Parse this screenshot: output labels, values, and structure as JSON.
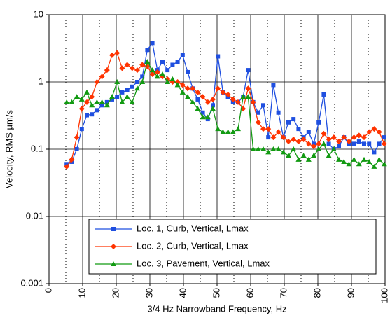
{
  "chart_data": {
    "type": "line",
    "x_label": "3/4 Hz Narrowband Frequency, Hz",
    "y_label": "Velocity, RMS µm/s",
    "x": [
      5.25,
      6.75,
      8.25,
      9.75,
      11.25,
      12.75,
      14.25,
      15.75,
      17.25,
      18.75,
      20.25,
      21.75,
      23.25,
      24.75,
      26.25,
      27.75,
      29.25,
      30.75,
      32.25,
      33.75,
      35.25,
      36.75,
      38.25,
      39.75,
      41.25,
      42.75,
      44.25,
      45.75,
      47.25,
      48.75,
      50.25,
      51.75,
      53.25,
      54.75,
      56.25,
      57.75,
      59.25,
      60.75,
      62.25,
      63.75,
      65.25,
      66.75,
      68.25,
      69.75,
      71.25,
      72.75,
      74.25,
      75.75,
      77.25,
      78.75,
      80.25,
      81.75,
      83.25,
      84.75,
      86.25,
      87.75,
      89.25,
      90.75,
      92.25,
      93.75,
      95.25,
      96.75,
      98.25,
      99.75
    ],
    "series": [
      {
        "name": "Loc. 1, Curb, Vertical, Lmax",
        "color": "#1f4fe0",
        "marker": "square",
        "values": [
          0.06,
          0.065,
          0.1,
          0.2,
          0.32,
          0.33,
          0.38,
          0.45,
          0.5,
          0.55,
          0.6,
          0.7,
          0.75,
          0.85,
          1.0,
          1.2,
          3.0,
          3.8,
          1.5,
          2.0,
          1.5,
          1.8,
          2.0,
          2.5,
          1.4,
          0.8,
          0.55,
          0.35,
          0.28,
          0.45,
          2.4,
          0.7,
          0.6,
          0.5,
          0.5,
          0.6,
          1.5,
          0.5,
          0.35,
          0.45,
          0.15,
          0.9,
          0.35,
          0.15,
          0.25,
          0.28,
          0.2,
          0.15,
          0.18,
          0.12,
          0.25,
          0.65,
          0.12,
          0.1,
          0.11,
          0.15,
          0.12,
          0.12,
          0.13,
          0.12,
          0.12,
          0.09,
          0.12,
          0.15
        ]
      },
      {
        "name": "Loc. 2, Curb, Vertical, Lmax",
        "color": "#ff3300",
        "marker": "diamond",
        "values": [
          0.055,
          0.07,
          0.15,
          0.4,
          0.5,
          0.6,
          1.0,
          1.2,
          1.5,
          2.5,
          2.7,
          1.6,
          1.8,
          1.6,
          1.5,
          1.8,
          1.7,
          1.3,
          1.4,
          1.2,
          1.1,
          1.0,
          1.0,
          0.9,
          0.8,
          0.8,
          0.7,
          0.6,
          0.5,
          0.55,
          0.8,
          0.7,
          0.65,
          0.55,
          0.5,
          0.4,
          0.8,
          0.5,
          0.25,
          0.2,
          0.2,
          0.15,
          0.18,
          0.15,
          0.13,
          0.14,
          0.13,
          0.14,
          0.12,
          0.11,
          0.12,
          0.17,
          0.14,
          0.15,
          0.13,
          0.15,
          0.13,
          0.15,
          0.16,
          0.15,
          0.18,
          0.2,
          0.18,
          0.12
        ]
      },
      {
        "name": "Loc. 3, Pavement, Vertical, Lmax",
        "color": "#129a12",
        "marker": "triangle",
        "values": [
          0.5,
          0.5,
          0.6,
          0.55,
          0.7,
          0.45,
          0.5,
          0.5,
          0.45,
          0.6,
          1.0,
          0.5,
          0.6,
          0.5,
          0.8,
          1.0,
          2.0,
          1.5,
          1.2,
          1.3,
          1.0,
          1.1,
          0.9,
          0.7,
          0.6,
          0.5,
          0.4,
          0.3,
          0.3,
          0.4,
          0.2,
          0.18,
          0.18,
          0.18,
          0.2,
          0.6,
          0.6,
          0.1,
          0.1,
          0.1,
          0.09,
          0.1,
          0.1,
          0.09,
          0.08,
          0.1,
          0.07,
          0.08,
          0.07,
          0.08,
          0.1,
          0.12,
          0.08,
          0.1,
          0.07,
          0.065,
          0.06,
          0.07,
          0.06,
          0.07,
          0.065,
          0.055,
          0.07,
          0.06
        ]
      }
    ],
    "xlim": [
      0,
      100
    ],
    "xticks": [
      0,
      10,
      20,
      30,
      40,
      50,
      60,
      70,
      80,
      90,
      100
    ],
    "x_minor_grid": [
      5,
      15,
      25,
      35,
      45,
      55,
      65,
      75,
      85,
      95
    ],
    "ylim": [
      0.001,
      10
    ],
    "yticks": [
      0.001,
      0.01,
      0.1,
      1,
      10
    ],
    "log_y": true,
    "grid": true,
    "legend": "lower center"
  }
}
